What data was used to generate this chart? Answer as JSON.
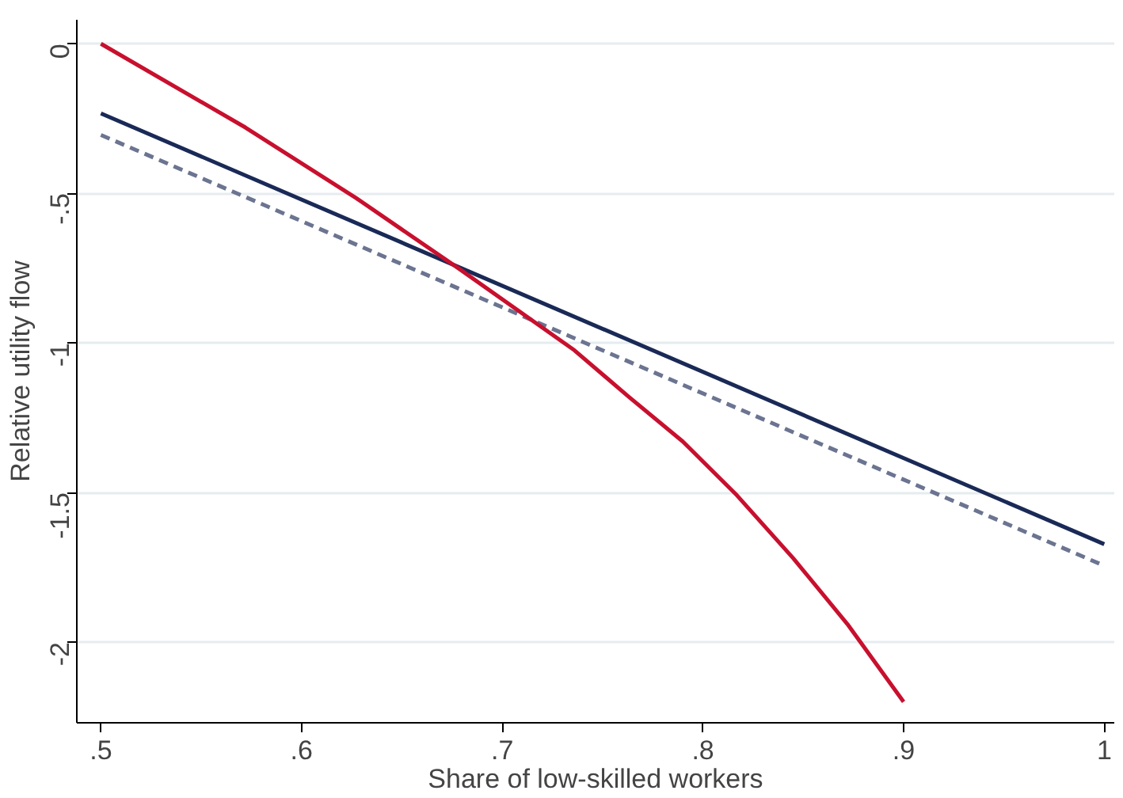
{
  "chart_data": {
    "type": "line",
    "xlabel": "Share of low-skilled workers",
    "ylabel": "Relative utility flow",
    "xlim": [
      0.488,
      1.005
    ],
    "ylim": [
      -2.27,
      0.08
    ],
    "xticks": [
      {
        "value": 0.5,
        "label": ".5"
      },
      {
        "value": 0.6,
        "label": ".6"
      },
      {
        "value": 0.7,
        "label": ".7"
      },
      {
        "value": 0.8,
        "label": ".8"
      },
      {
        "value": 0.9,
        "label": ".9"
      },
      1
    ],
    "yticks": [
      0,
      {
        "value": -0.5,
        "label": "-.5"
      },
      -1,
      -1.5,
      -2
    ],
    "grid": "y",
    "series": [
      {
        "color": "#1a2a57",
        "x": [
          0.5,
          1.0
        ],
        "values": [
          -0.233,
          -1.673
        ],
        "line_style": "solid"
      },
      {
        "color": "#6b7490",
        "x": [
          0.5,
          1.0
        ],
        "values": [
          -0.305,
          -1.745
        ],
        "line_style": "dashed"
      },
      {
        "color": "#c8102e",
        "x": [
          0.5,
          0.572,
          0.627,
          0.678,
          0.736,
          0.763,
          0.79,
          0.817,
          0.845,
          0.872,
          0.9
        ],
        "values": [
          0,
          -0.28,
          -0.515,
          -0.75,
          -1.025,
          -1.18,
          -1.33,
          -1.51,
          -1.72,
          -1.94,
          -2.2
        ],
        "line_style": "solid"
      }
    ]
  }
}
